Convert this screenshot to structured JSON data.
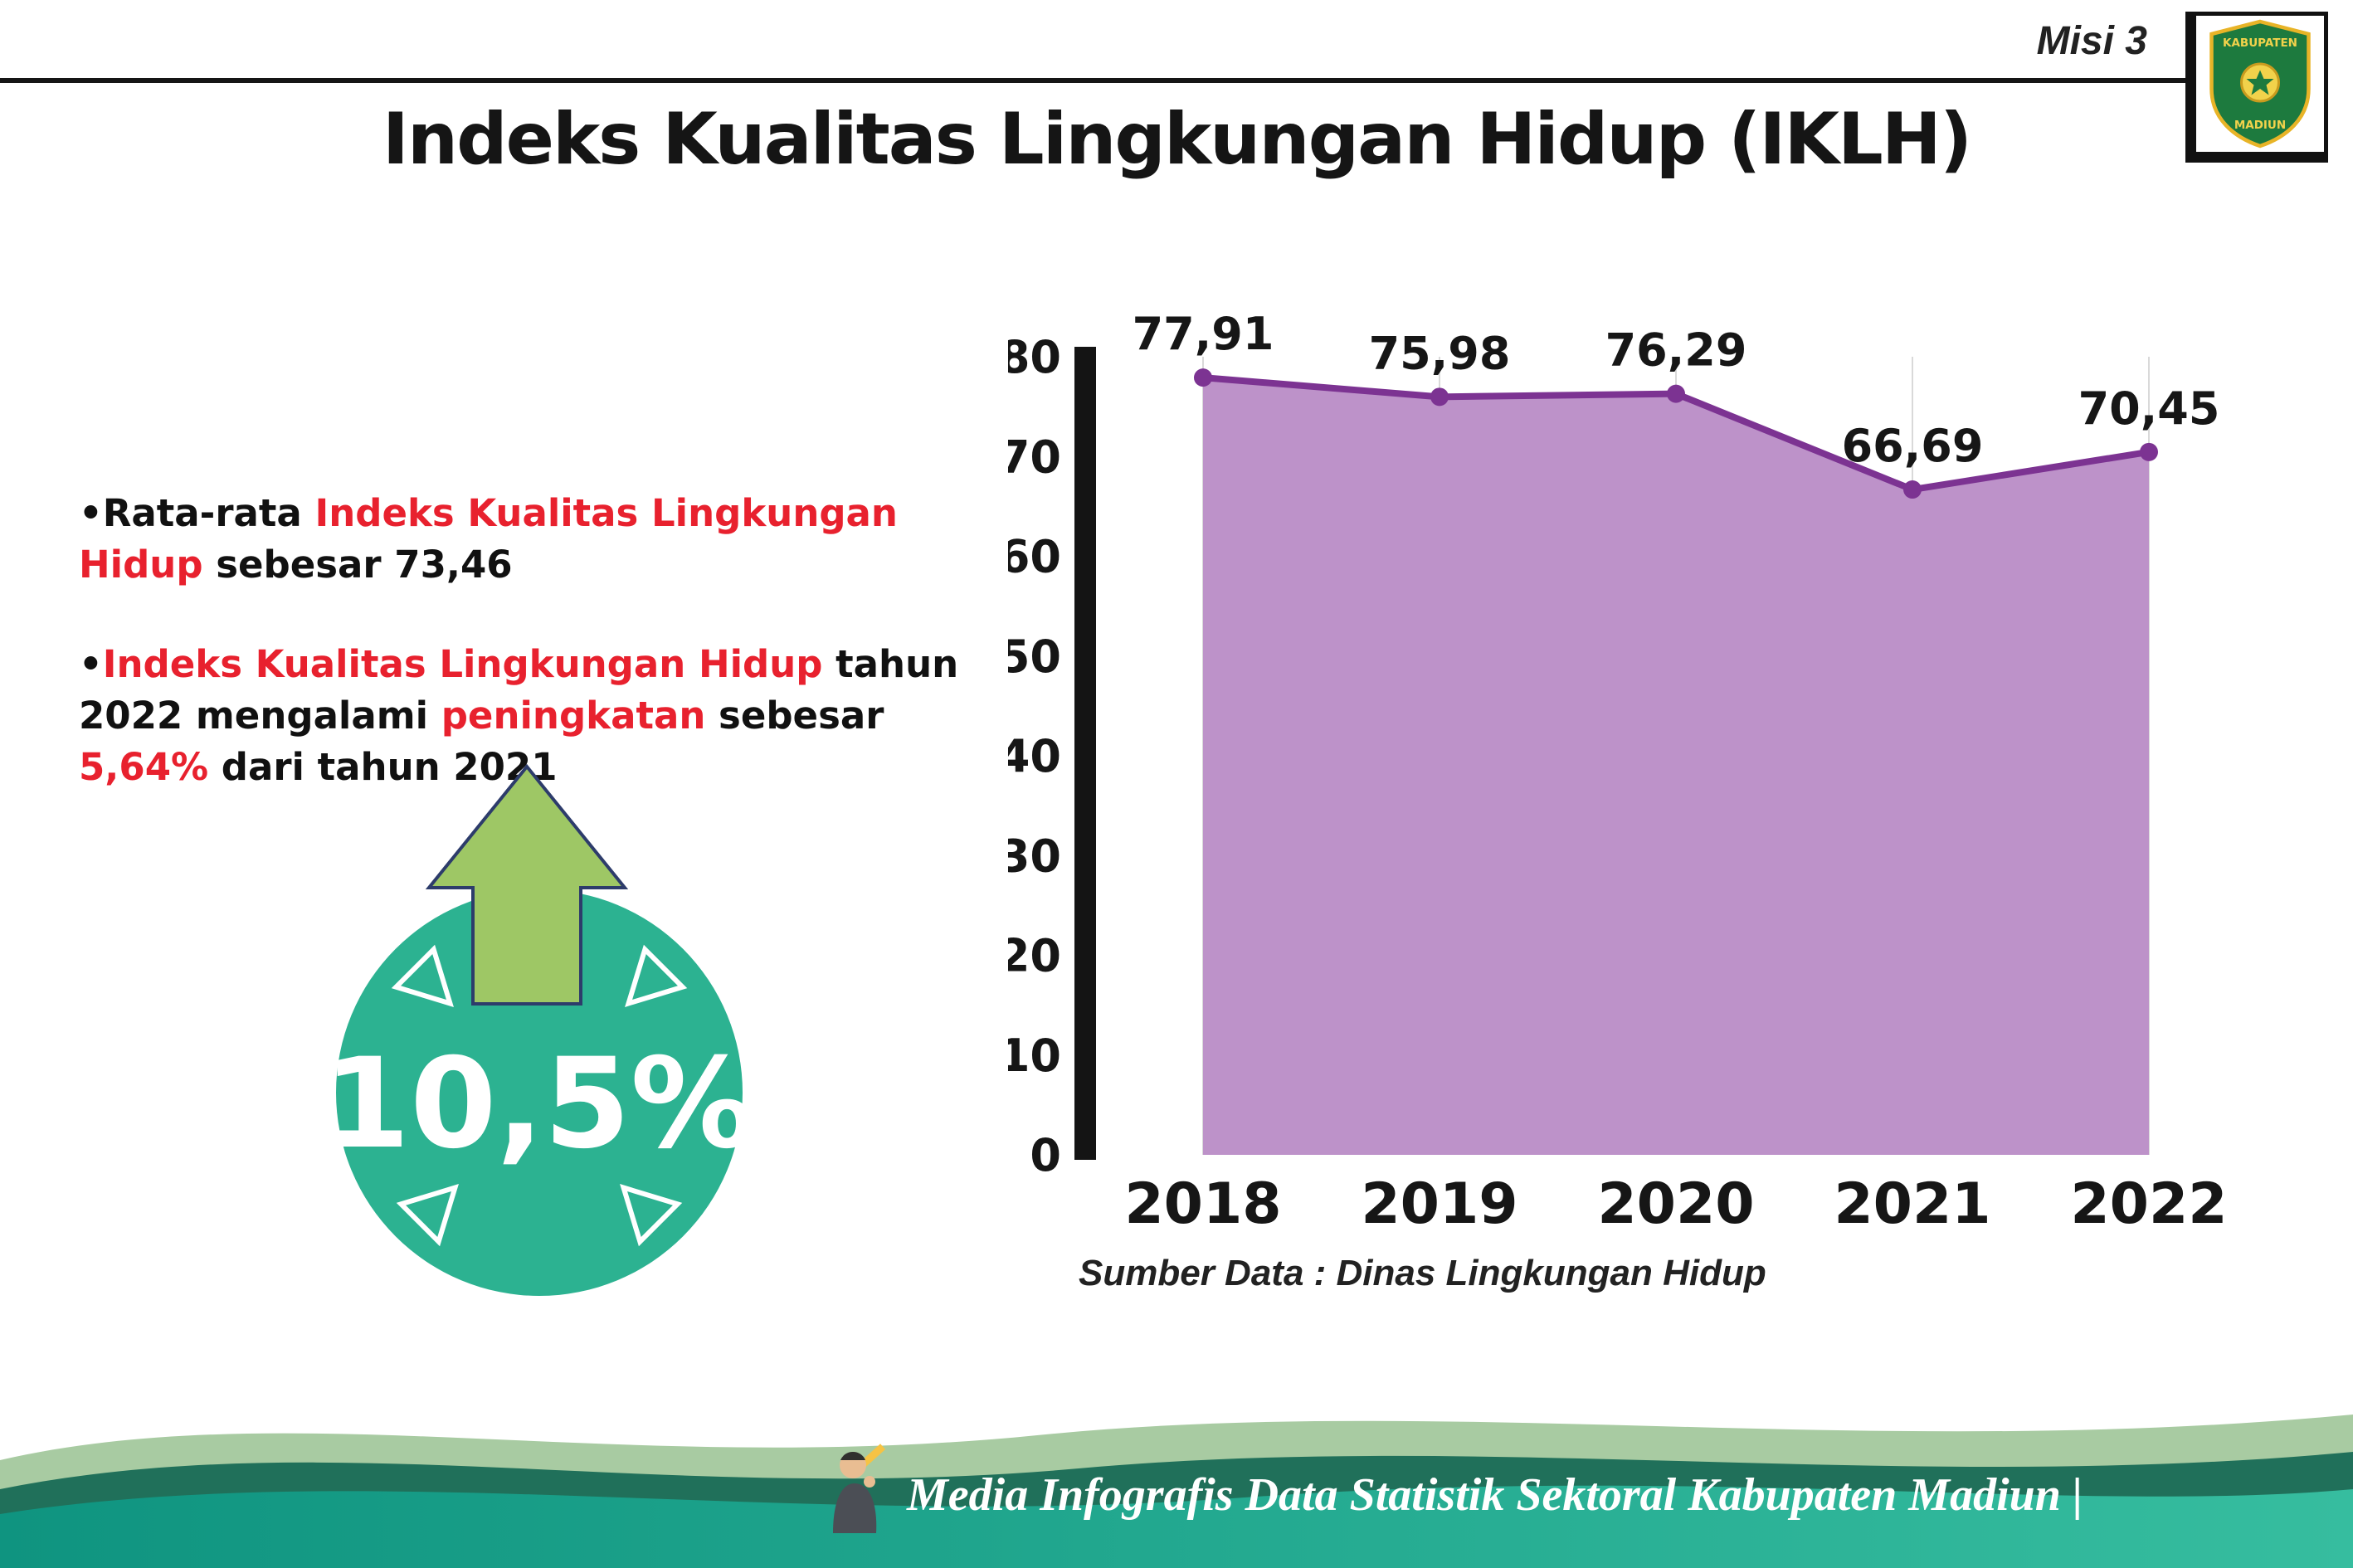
{
  "header": {
    "misi_label": "Misi 3",
    "title": "Indeks Kualitas Lingkungan Hidup (IKLH)",
    "logo": {
      "top_text": "KABUPATEN",
      "bottom_text": "MADIUN"
    }
  },
  "accent_red": "#e8212e",
  "bullets": [
    {
      "segments": [
        {
          "text": "Rata-rata ",
          "color": "black"
        },
        {
          "text": "Indeks Kualitas Lingkungan Hidup",
          "color": "red"
        },
        {
          "text": " sebesar 73,46",
          "color": "black"
        }
      ]
    },
    {
      "segments": [
        {
          "text": "Indeks Kualitas Lingkungan Hidup",
          "color": "red"
        },
        {
          "text": " tahun 2022 mengalami ",
          "color": "black"
        },
        {
          "text": "peningkatan",
          "color": "red"
        },
        {
          "text": " sebesar ",
          "color": "black"
        },
        {
          "text": "5,64%",
          "color": "red"
        },
        {
          "text": " dari tahun 2021",
          "color": "black"
        }
      ]
    }
  ],
  "badge": {
    "value": "10,5%",
    "circle_color": "#2cb291",
    "arrow_color": "#9ec765"
  },
  "chart_data": {
    "type": "area",
    "categories": [
      "2018",
      "2019",
      "2020",
      "2021",
      "2022"
    ],
    "values": [
      77.91,
      75.98,
      76.29,
      66.69,
      70.45
    ],
    "value_labels": [
      "77,91",
      "75,98",
      "76,29",
      "66,69",
      "70,45"
    ],
    "title": "",
    "xlabel": "",
    "ylabel": "",
    "ylim": [
      0,
      80
    ],
    "yticks": [
      0,
      10,
      20,
      30,
      40,
      50,
      60,
      70,
      80
    ],
    "grid": "vertical-light",
    "legend": "none",
    "area_color": "#bd92c9",
    "line_color": "#7c3392",
    "axis_color": "#141414",
    "grid_color": "#d9d9d9",
    "source_note": "Sumber Data : Dinas Lingkungan Hidup"
  },
  "footer": {
    "text": "Media Infografis Data Statistik Sektoral Kabupaten Madiun |"
  }
}
